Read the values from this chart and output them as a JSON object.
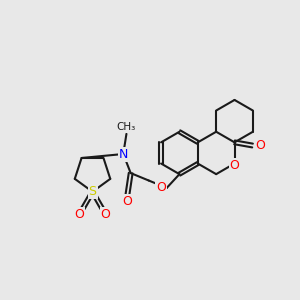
{
  "bg_color": "#e8e8e8",
  "bond_color": "#1a1a1a",
  "bond_width": 1.5,
  "dbo": 0.012,
  "atom_colors": {
    "O": "#ff0000",
    "N": "#0000ff",
    "S": "#cccc00",
    "C": "#1a1a1a"
  },
  "fs": 9,
  "fss": 7.5,
  "ring_r": 0.082
}
